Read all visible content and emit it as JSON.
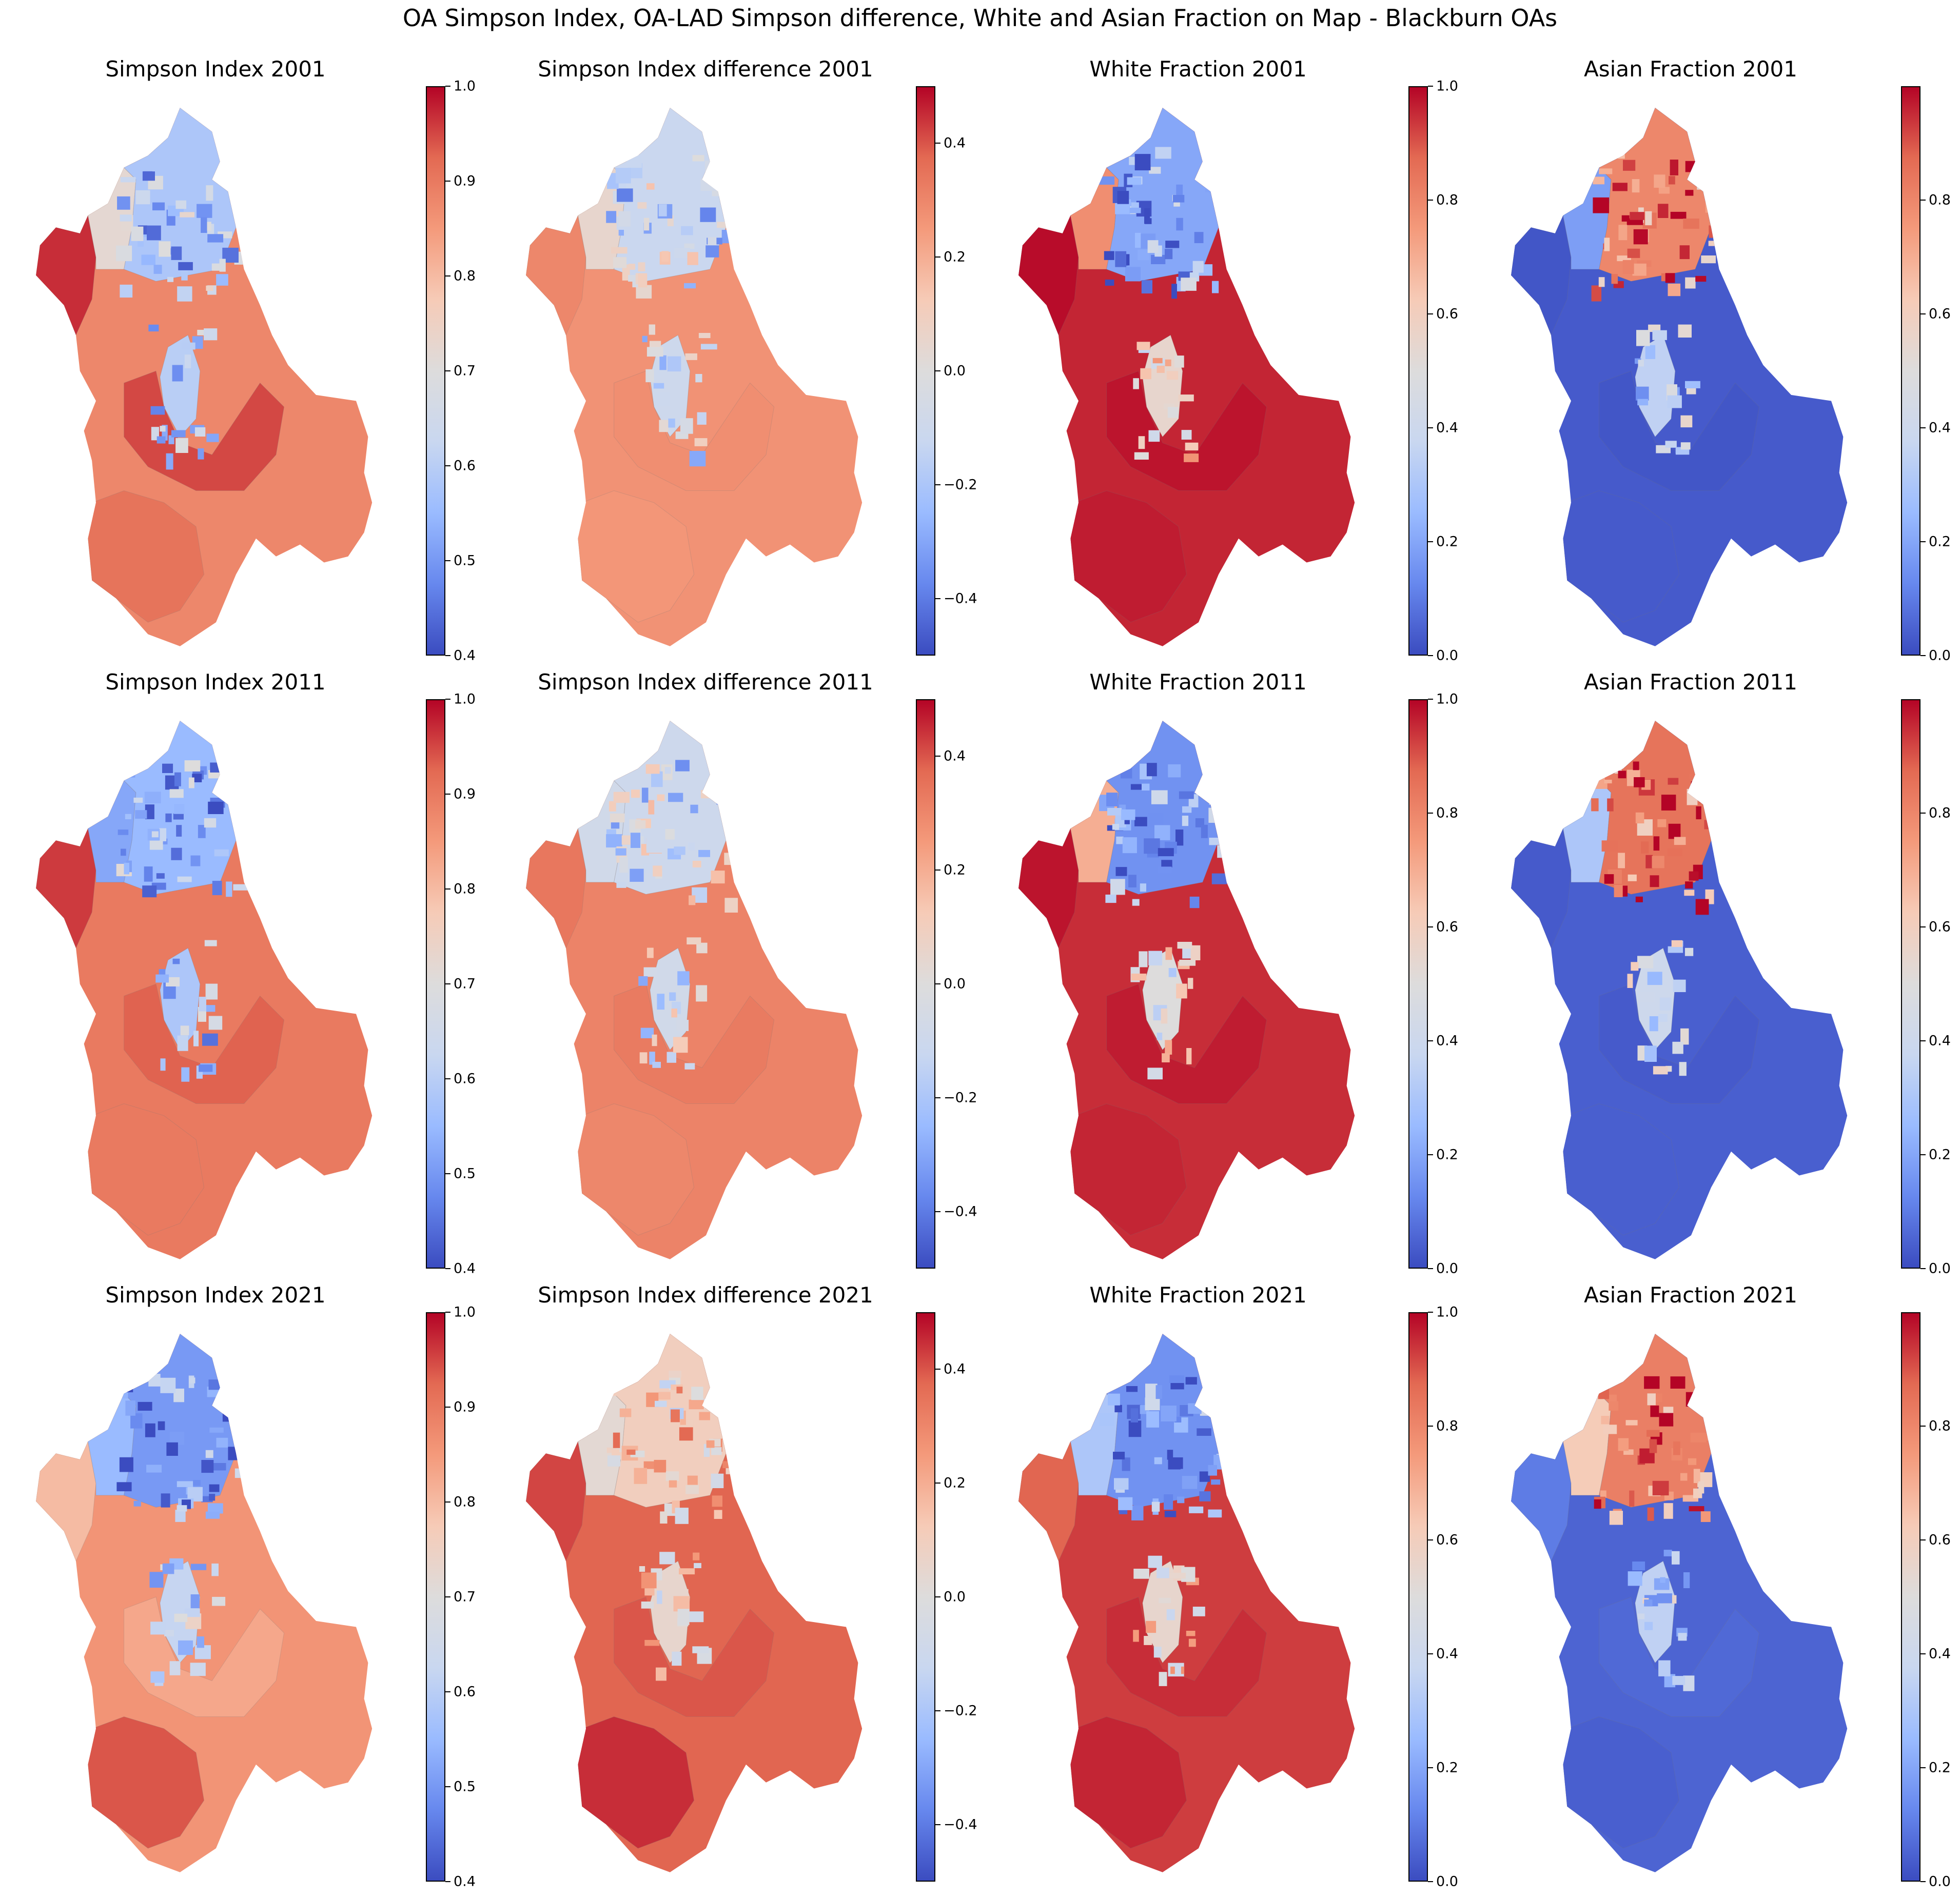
{
  "suptitle": "OA Simpson Index, OA-LAD Simpson difference, White and Asian Fraction on Map - Blackburn OAs",
  "colormap": {
    "name": "coolwarm",
    "stops": [
      "#3b4cc0",
      "#6788ee",
      "#9abbff",
      "#c9d7f0",
      "#dddcdc",
      "#f6cbb7",
      "#f49a7b",
      "#e36a53",
      "#b40426"
    ]
  },
  "panels": [
    {
      "title": "Simpson Index 2001",
      "vmin": 0.4,
      "vmax": 1.0,
      "ticks": [
        "0.4",
        "0.5",
        "0.6",
        "0.7",
        "0.8",
        "0.9",
        "1.0"
      ],
      "base": 0.88,
      "west": 0.97,
      "northwest": 0.72,
      "inner_north": 0.58,
      "center": 0.6,
      "south_west": 0.91,
      "middle": 0.95
    },
    {
      "title": "Simpson Index difference 2001",
      "vmin": -0.5,
      "vmax": 0.5,
      "ticks": [
        "−0.4",
        "−0.2",
        "0.0",
        "0.2",
        "0.4"
      ],
      "base": 0.27,
      "west": 0.3,
      "northwest": 0.05,
      "inner_north": -0.12,
      "center": -0.1,
      "south_west": 0.26,
      "middle": 0.28
    },
    {
      "title": "White Fraction 2001",
      "vmin": 0.0,
      "vmax": 1.0,
      "ticks": [
        "0.0",
        "0.2",
        "0.4",
        "0.6",
        "0.8",
        "1.0"
      ],
      "base": 0.96,
      "west": 0.99,
      "northwest": 0.78,
      "inner_north": 0.2,
      "center": 0.55,
      "south_west": 0.97,
      "middle": 0.98
    },
    {
      "title": "Asian Fraction 2001",
      "vmin": 0.0,
      "vmax": 1.0,
      "ticks": [
        "0.0",
        "0.2",
        "0.4",
        "0.6",
        "0.8"
      ],
      "base": 0.03,
      "west": 0.02,
      "northwest": 0.18,
      "inner_north": 0.8,
      "center": 0.35,
      "south_west": 0.03,
      "middle": 0.02
    },
    {
      "title": "Simpson Index 2011",
      "vmin": 0.4,
      "vmax": 1.0,
      "ticks": [
        "0.4",
        "0.5",
        "0.6",
        "0.7",
        "0.8",
        "0.9",
        "1.0"
      ],
      "base": 0.9,
      "west": 0.96,
      "northwest": 0.52,
      "inner_north": 0.55,
      "center": 0.58,
      "south_west": 0.9,
      "middle": 0.93
    },
    {
      "title": "Simpson Index difference 2011",
      "vmin": -0.5,
      "vmax": 0.5,
      "ticks": [
        "−0.4",
        "−0.2",
        "0.0",
        "0.2",
        "0.4"
      ],
      "base": 0.31,
      "west": 0.34,
      "northwest": -0.08,
      "inner_north": -0.1,
      "center": -0.08,
      "south_west": 0.3,
      "middle": 0.33
    },
    {
      "title": "White Fraction 2011",
      "vmin": 0.0,
      "vmax": 1.0,
      "ticks": [
        "0.0",
        "0.2",
        "0.4",
        "0.6",
        "0.8",
        "1.0"
      ],
      "base": 0.95,
      "west": 0.98,
      "northwest": 0.7,
      "inner_north": 0.15,
      "center": 0.5,
      "south_west": 0.96,
      "middle": 0.97
    },
    {
      "title": "Asian Fraction 2011",
      "vmin": 0.0,
      "vmax": 1.0,
      "ticks": [
        "0.0",
        "0.2",
        "0.4",
        "0.6",
        "0.8"
      ],
      "base": 0.04,
      "west": 0.03,
      "northwest": 0.3,
      "inner_north": 0.85,
      "center": 0.4,
      "south_west": 0.04,
      "middle": 0.03
    },
    {
      "title": "Simpson Index 2021",
      "vmin": 0.4,
      "vmax": 1.0,
      "ticks": [
        "0.4",
        "0.5",
        "0.6",
        "0.7",
        "0.8",
        "0.9",
        "1.0"
      ],
      "base": 0.86,
      "west": 0.8,
      "northwest": 0.55,
      "inner_north": 0.5,
      "center": 0.62,
      "south_west": 0.94,
      "middle": 0.83
    },
    {
      "title": "Simpson Index difference 2021",
      "vmin": -0.5,
      "vmax": 0.5,
      "ticks": [
        "−0.4",
        "−0.2",
        "0.0",
        "0.2",
        "0.4"
      ],
      "base": 0.38,
      "west": 0.42,
      "northwest": 0.03,
      "inner_north": 0.1,
      "center": 0.05,
      "south_west": 0.45,
      "middle": 0.4
    },
    {
      "title": "White Fraction 2021",
      "vmin": 0.0,
      "vmax": 1.0,
      "ticks": [
        "0.0",
        "0.2",
        "0.4",
        "0.6",
        "0.8",
        "1.0"
      ],
      "base": 0.93,
      "west": 0.88,
      "northwest": 0.3,
      "inner_north": 0.15,
      "center": 0.55,
      "south_west": 0.96,
      "middle": 0.95
    },
    {
      "title": "Asian Fraction 2021",
      "vmin": 0.0,
      "vmax": 1.0,
      "ticks": [
        "0.0",
        "0.2",
        "0.4",
        "0.6",
        "0.8"
      ],
      "base": 0.05,
      "west": 0.1,
      "northwest": 0.62,
      "inner_north": 0.82,
      "center": 0.35,
      "south_west": 0.04,
      "middle": 0.06
    }
  ]
}
